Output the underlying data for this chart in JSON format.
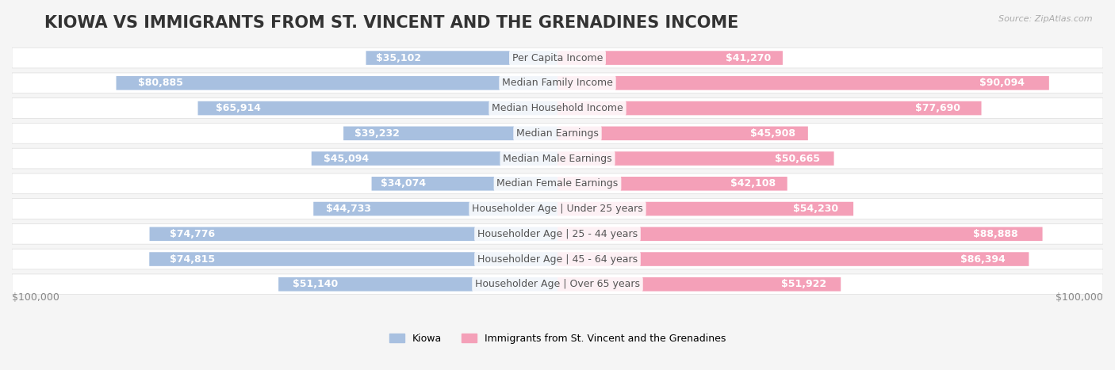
{
  "title": "KIOWA VS IMMIGRANTS FROM ST. VINCENT AND THE GRENADINES INCOME",
  "source": "Source: ZipAtlas.com",
  "categories": [
    "Per Capita Income",
    "Median Family Income",
    "Median Household Income",
    "Median Earnings",
    "Median Male Earnings",
    "Median Female Earnings",
    "Householder Age | Under 25 years",
    "Householder Age | 25 - 44 years",
    "Householder Age | 45 - 64 years",
    "Householder Age | Over 65 years"
  ],
  "kiowa_values": [
    35102,
    80885,
    65914,
    39232,
    45094,
    34074,
    44733,
    74776,
    74815,
    51140
  ],
  "immigrant_values": [
    41270,
    90094,
    77690,
    45908,
    50665,
    42108,
    54230,
    88888,
    86394,
    51922
  ],
  "kiowa_labels": [
    "$35,102",
    "$80,885",
    "$65,914",
    "$39,232",
    "$45,094",
    "$34,074",
    "$44,733",
    "$74,776",
    "$74,815",
    "$51,140"
  ],
  "immigrant_labels": [
    "$41,270",
    "$90,094",
    "$77,690",
    "$45,908",
    "$50,665",
    "$42,108",
    "$54,230",
    "$88,888",
    "$86,394",
    "$51,922"
  ],
  "kiowa_color": "#a8c0e0",
  "immigrant_color": "#f4a0b8",
  "kiowa_label_color_inside": "#ffffff",
  "kiowa_label_color_outside": "#888888",
  "immigrant_label_color_inside": "#ffffff",
  "immigrant_label_color_outside": "#888888",
  "max_value": 100000,
  "background_color": "#f5f5f5",
  "row_bg_color": "#ffffff",
  "legend_kiowa": "Kiowa",
  "legend_immigrant": "Immigrants from St. Vincent and the Grenadines",
  "xlabel_left": "$100,000",
  "xlabel_right": "$100,000",
  "title_fontsize": 15,
  "label_fontsize": 9,
  "category_fontsize": 9,
  "inside_label_threshold": 20000
}
